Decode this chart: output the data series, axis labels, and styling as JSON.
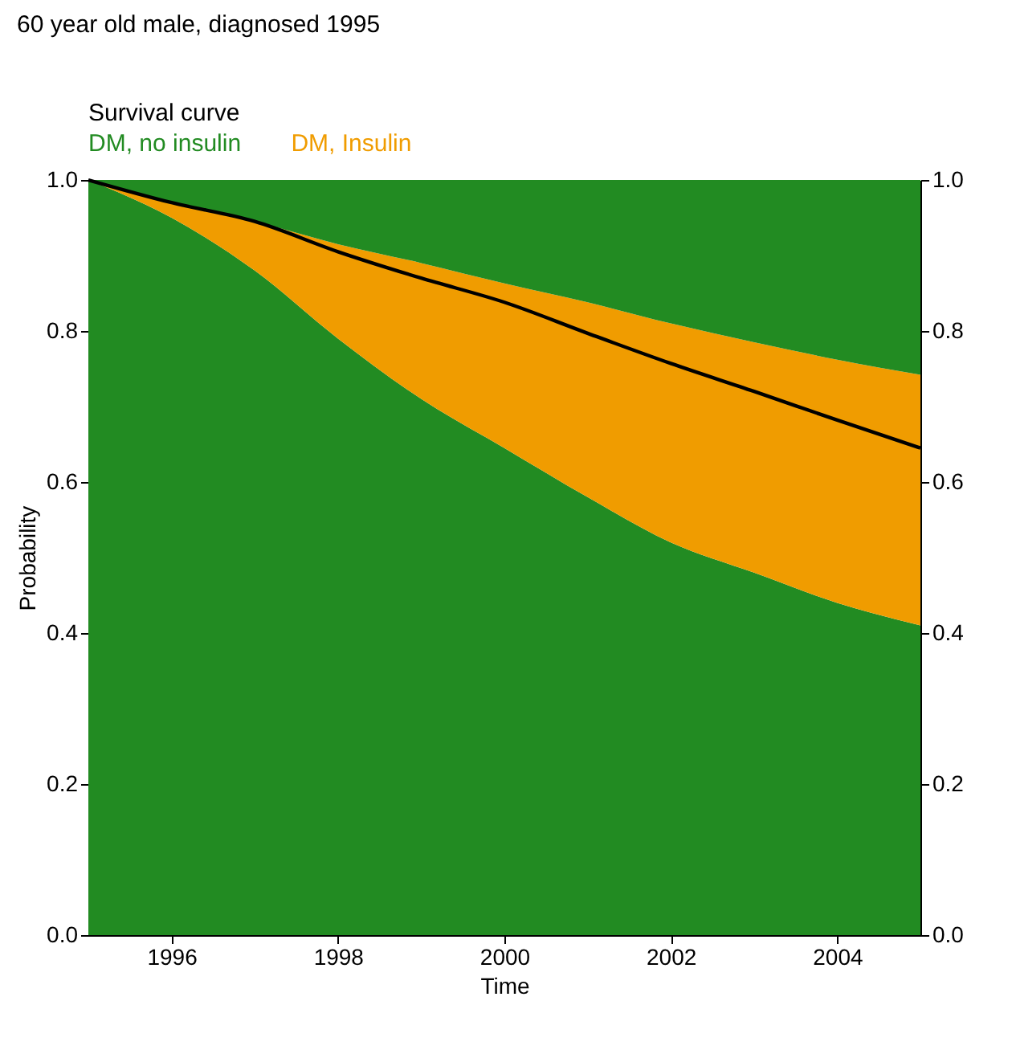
{
  "chart_data": {
    "type": "area",
    "title": "60 year old male, diagnosed 1995",
    "xlabel": "Time",
    "ylabel": "Probability",
    "stacked": true,
    "legend": "top left",
    "grid": false,
    "x": [
      1995,
      1996,
      1997,
      1998,
      1999,
      2000,
      2001,
      2002,
      2003,
      2004,
      2005
    ],
    "series": [
      {
        "name": "DM, no insulin",
        "color": "#228b22",
        "values": [
          1.0,
          0.95,
          0.88,
          0.79,
          0.71,
          0.645,
          0.58,
          0.52,
          0.48,
          0.44,
          0.41
        ]
      },
      {
        "name": "DM, Insulin",
        "color": "#f09c00",
        "values": [
          0,
          0.02,
          0.065,
          0.125,
          0.18,
          0.218,
          0.258,
          0.29,
          0.305,
          0.322,
          0.332
        ]
      },
      {
        "color": "#228b22",
        "values": [
          0,
          0.03,
          0.055,
          0.085,
          0.11,
          0.137,
          0.162,
          0.19,
          0.215,
          0.238,
          0.258
        ]
      },
      {
        "name": "Survival curve",
        "type": "line",
        "axis": "y2",
        "color": "#000000",
        "values": [
          1.0,
          0.97,
          0.945,
          0.905,
          0.87,
          0.838,
          0.797,
          0.757,
          0.72,
          0.682,
          0.645
        ]
      }
    ],
    "xlim": [
      1995,
      2005
    ],
    "xticks": [
      1996,
      1998,
      2000,
      2002,
      2004
    ],
    "ylim": [
      0,
      1
    ],
    "yticks": [
      {
        "value": 0,
        "label": "0.0"
      },
      {
        "value": 0.2,
        "label": "0.2"
      },
      {
        "value": 0.4,
        "label": "0.4"
      },
      {
        "value": 0.6,
        "label": "0.6"
      },
      {
        "value": 0.8,
        "label": "0.8"
      },
      {
        "value": 1,
        "label": "1.0"
      }
    ],
    "y2lim": [
      0,
      1
    ],
    "y2ticks": [
      {
        "value": 0,
        "label": "0.0"
      },
      {
        "value": 0.2,
        "label": "0.2"
      },
      {
        "value": 0.4,
        "label": "0.4"
      },
      {
        "value": 0.6,
        "label": "0.6"
      },
      {
        "value": 0.8,
        "label": "0.8"
      },
      {
        "value": 1,
        "label": "1.0"
      }
    ]
  }
}
